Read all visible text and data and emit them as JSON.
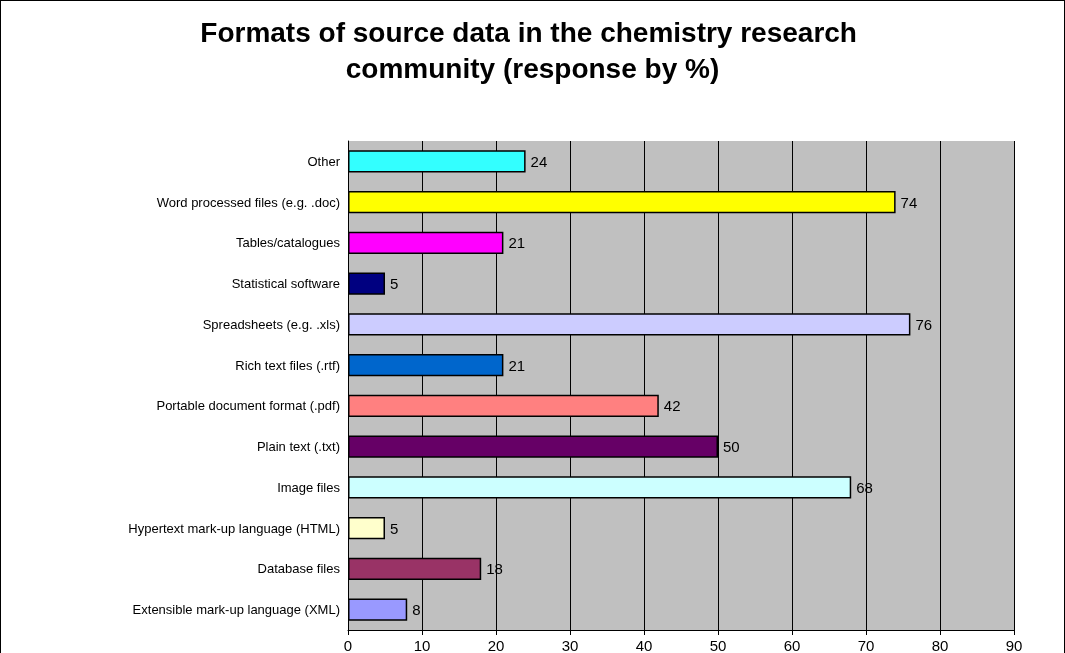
{
  "chart_data": {
    "type": "bar",
    "orientation": "horizontal",
    "title": "Formats of source data in the chemistry research community (response by %)",
    "categories": [
      "Other",
      "Word processed files (e.g. .doc)",
      "Tables/catalogues",
      "Statistical software",
      "Spreadsheets (e.g. .xls)",
      "Rich text files (.rtf)",
      "Portable document format (.pdf)",
      "Plain text (.txt)",
      "Image files",
      "Hypertext mark-up language (HTML)",
      "Database files",
      "Extensible mark-up language (XML)"
    ],
    "values": [
      24,
      74,
      21,
      5,
      76,
      21,
      42,
      50,
      68,
      5,
      18,
      8
    ],
    "colors": [
      "#33ffff",
      "#ffff00",
      "#ff00ff",
      "#000080",
      "#ccccff",
      "#0066cc",
      "#ff8080",
      "#660066",
      "#ccffff",
      "#ffffcc",
      "#993366",
      "#9999ff"
    ],
    "xlim": [
      0,
      90
    ],
    "xticks": [
      0,
      10,
      20,
      30,
      40,
      50,
      60,
      70,
      80,
      90
    ],
    "grid": "x",
    "data_labels": true
  }
}
